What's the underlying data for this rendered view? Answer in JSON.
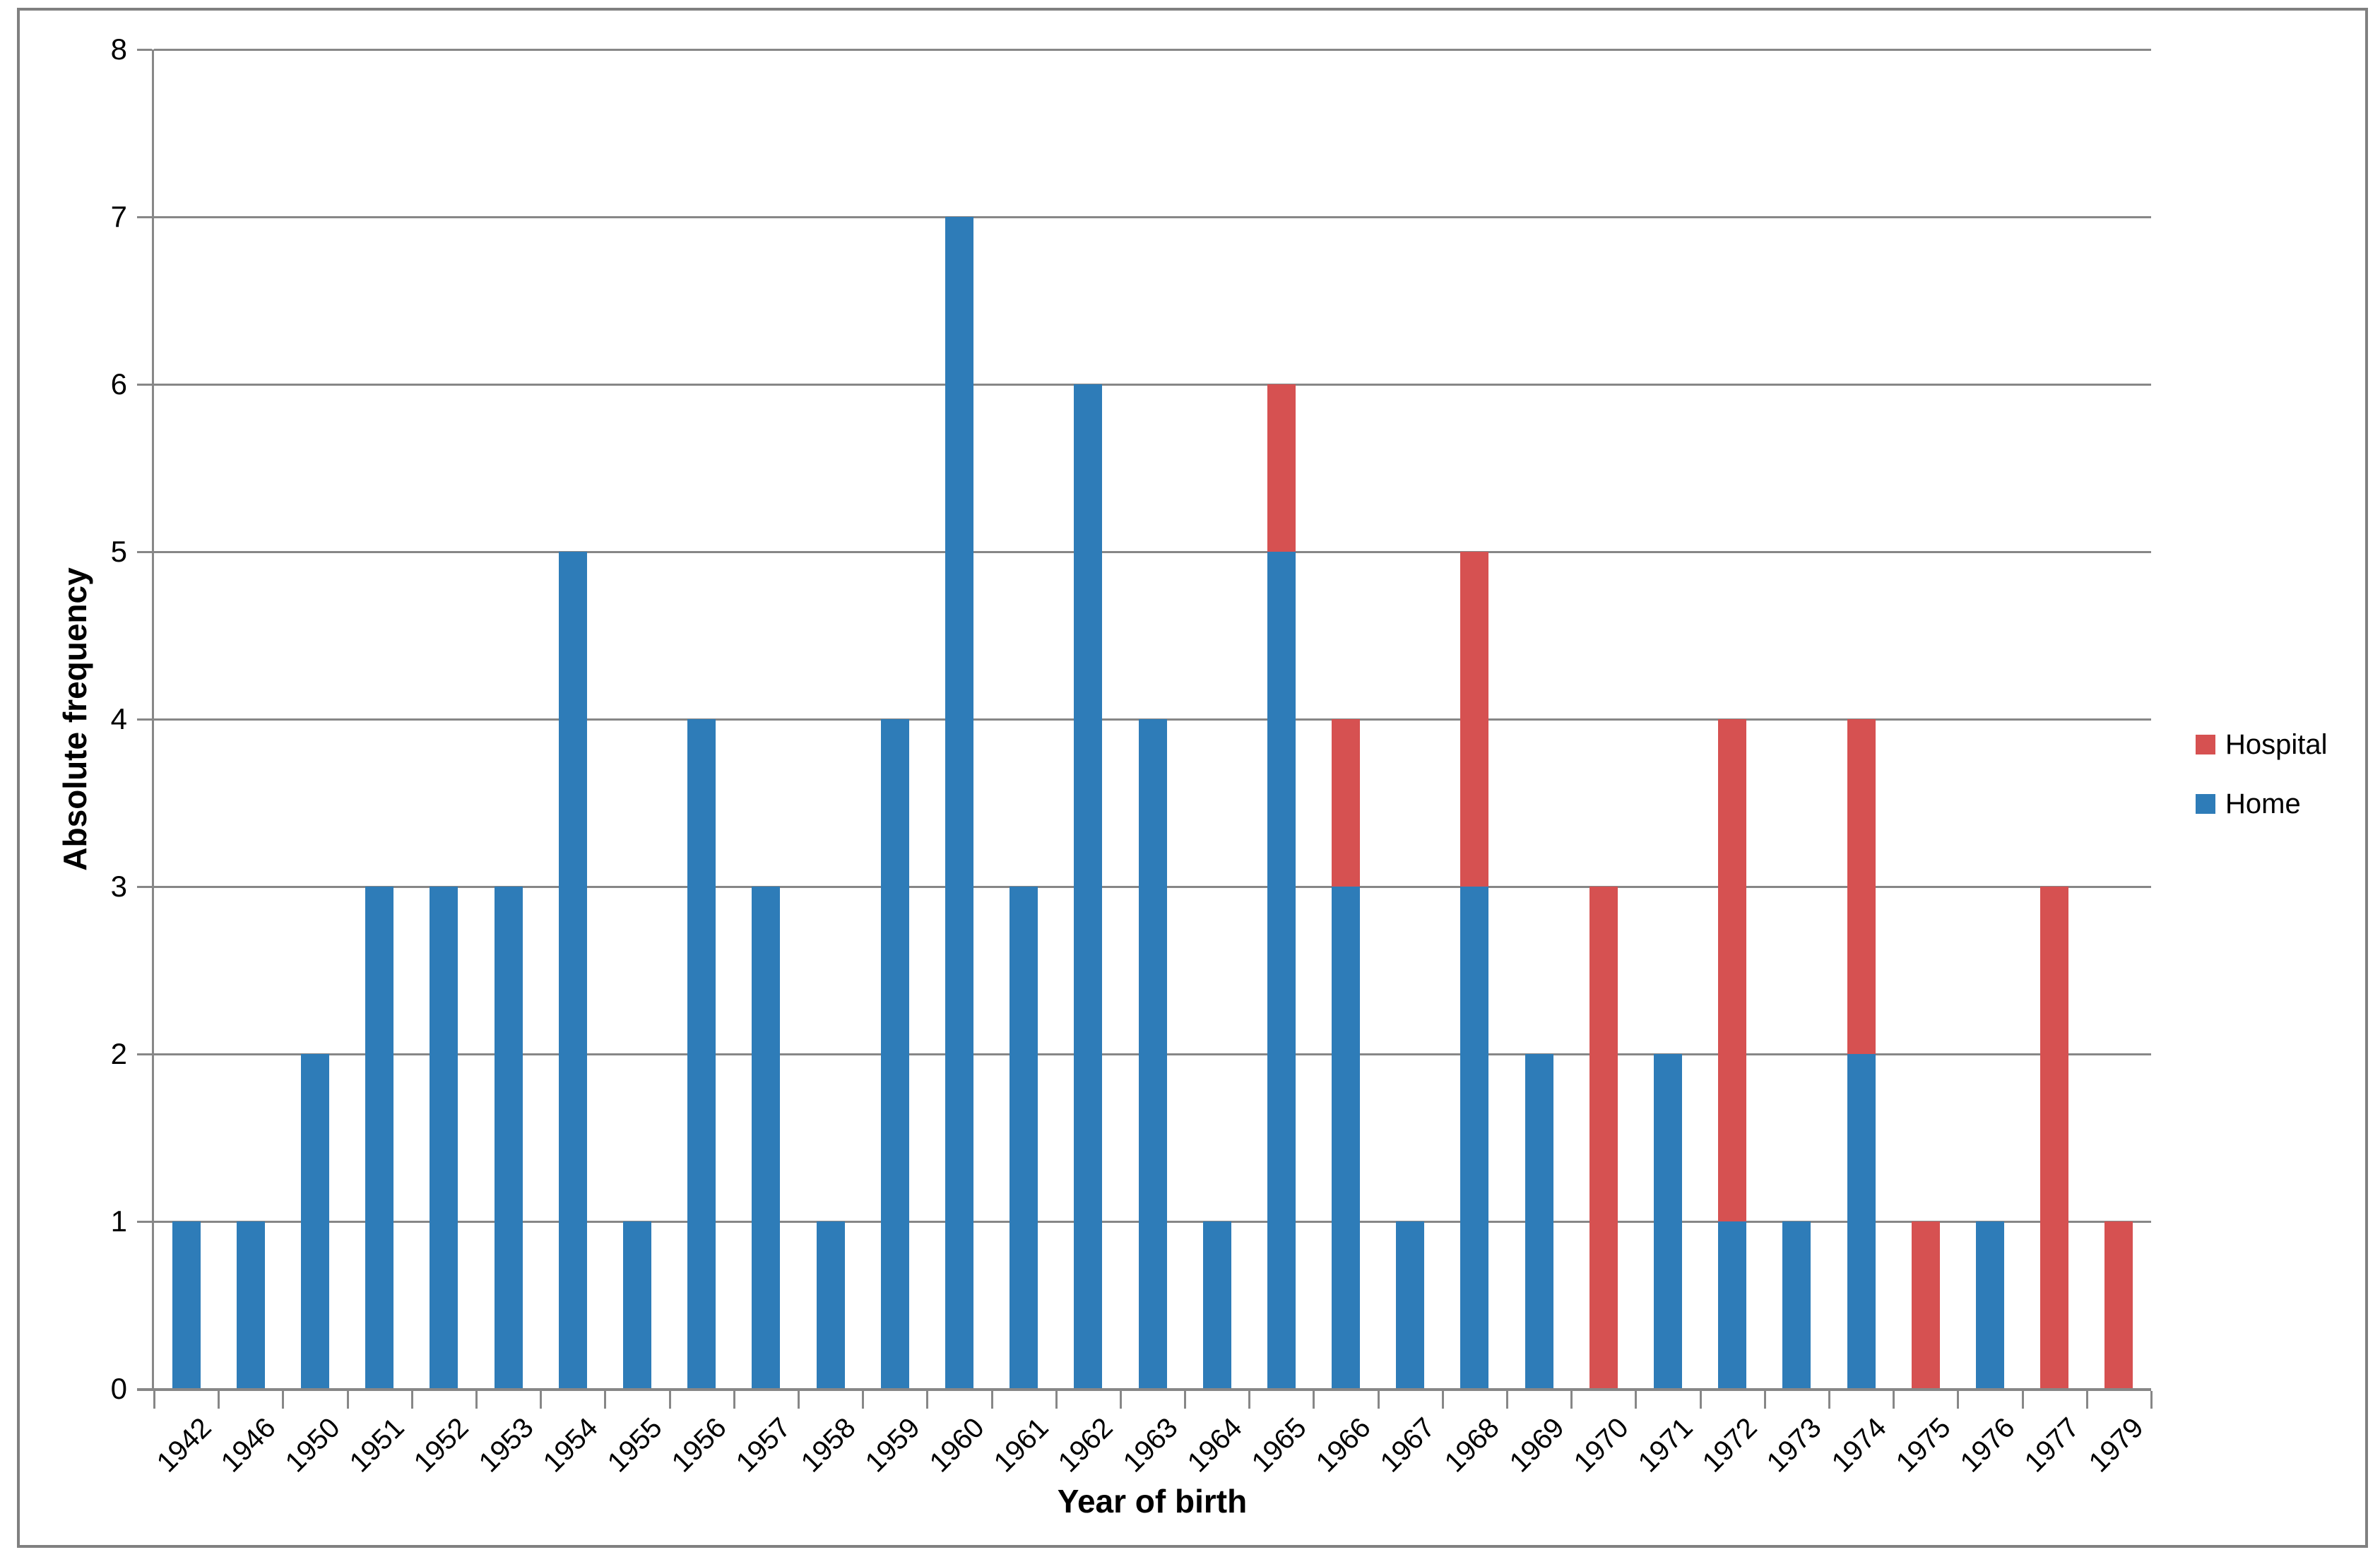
{
  "chart_data": {
    "type": "bar",
    "stacked": true,
    "title": "",
    "xlabel": "Year of birth",
    "ylabel": "Absolute frequency",
    "ylim": [
      0,
      8
    ],
    "ytick_interval": 1,
    "yticks": [
      "0",
      "1",
      "2",
      "3",
      "4",
      "5",
      "6",
      "7",
      "8"
    ],
    "grid": true,
    "legend_position": "right",
    "categories": [
      "1942",
      "1946",
      "1950",
      "1951",
      "1952",
      "1953",
      "1954",
      "1955",
      "1956",
      "1957",
      "1958",
      "1959",
      "1960",
      "1961",
      "1962",
      "1963",
      "1964",
      "1965",
      "1966",
      "1967",
      "1968",
      "1969",
      "1970",
      "1971",
      "1972",
      "1973",
      "1974",
      "1975",
      "1976",
      "1977",
      "1979"
    ],
    "series": [
      {
        "name": "Home",
        "color": "#2E7CB8",
        "values": [
          1,
          1,
          2,
          3,
          3,
          3,
          5,
          1,
          4,
          3,
          1,
          4,
          7,
          3,
          6,
          4,
          1,
          5,
          3,
          1,
          3,
          2,
          0,
          2,
          1,
          1,
          2,
          0,
          1,
          0,
          0
        ]
      },
      {
        "name": "Hospital",
        "color": "#D65151",
        "values": [
          0,
          0,
          0,
          0,
          0,
          0,
          0,
          0,
          0,
          0,
          0,
          0,
          0,
          0,
          0,
          0,
          0,
          1,
          1,
          0,
          2,
          0,
          3,
          0,
          3,
          0,
          2,
          1,
          0,
          3,
          1
        ]
      }
    ],
    "legend": [
      {
        "label": "Hospital",
        "color": "#D65151"
      },
      {
        "label": "Home",
        "color": "#2E7CB8"
      }
    ]
  },
  "colors": {
    "gridline": "#878787",
    "axis": "#878787",
    "border": "#808080",
    "text": "#000000",
    "background": "#ffffff"
  }
}
